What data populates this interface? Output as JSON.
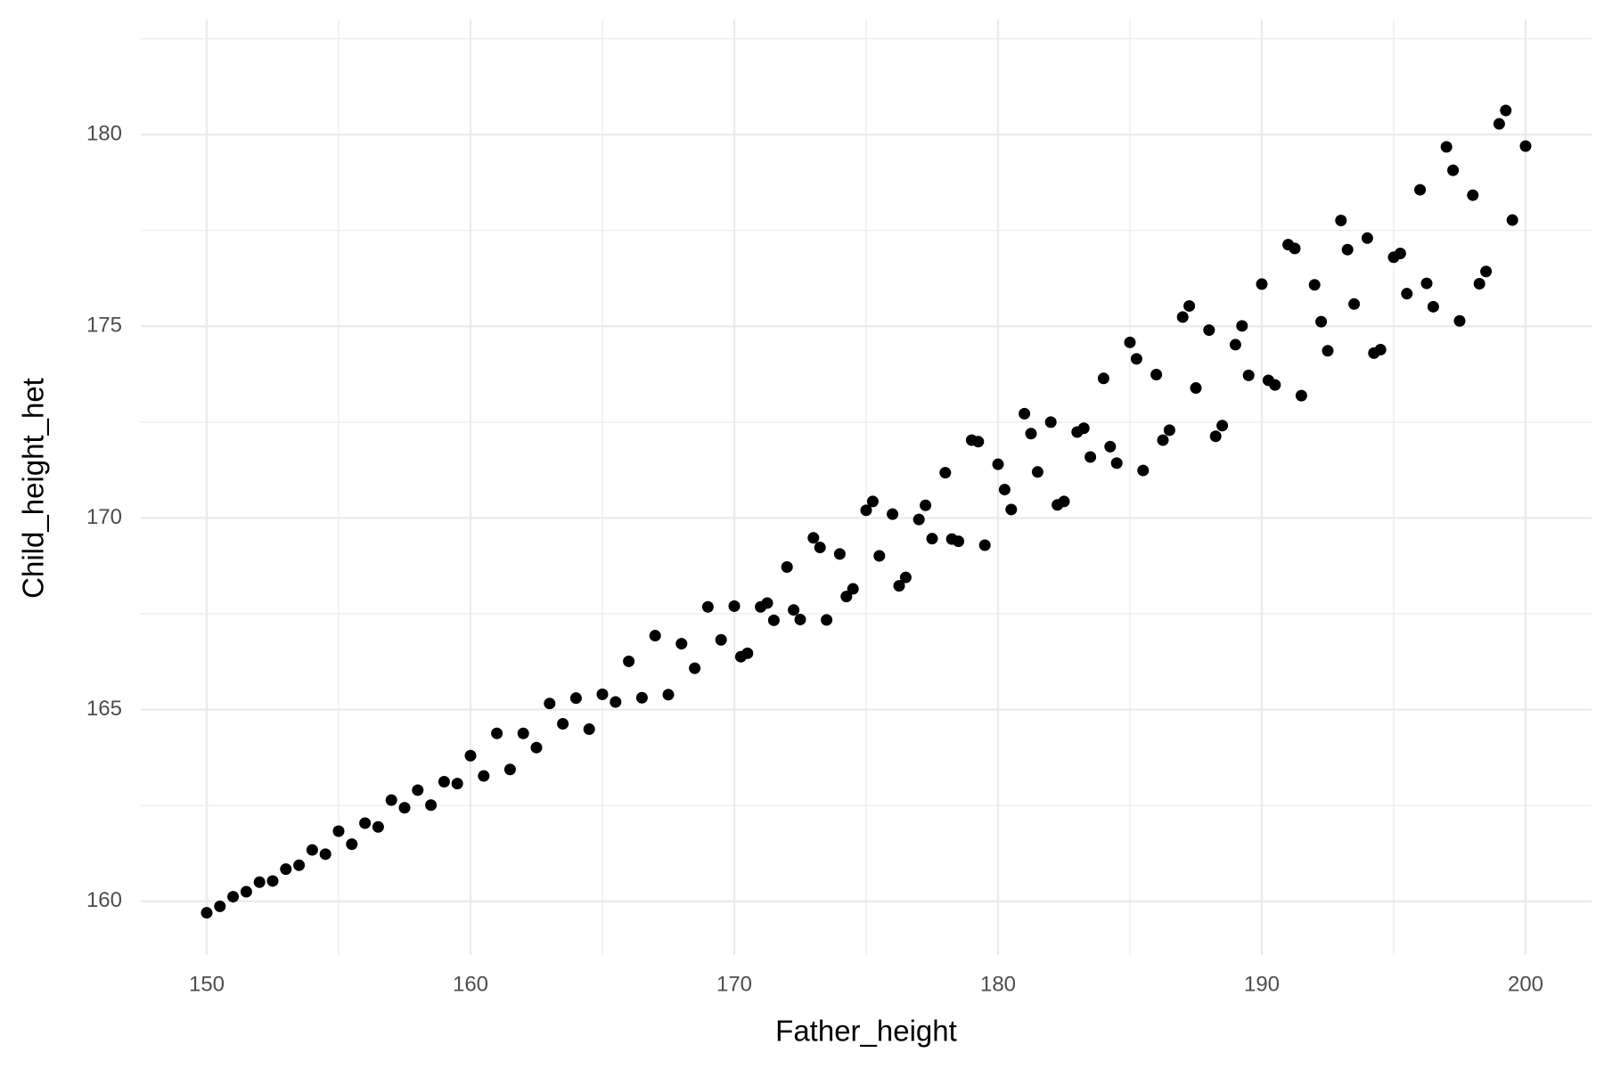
{
  "chart_data": {
    "type": "scatter",
    "x_label": "Father_height",
    "y_label": "Child_height_het",
    "color": "#000000",
    "grid": true,
    "xlim": [
      147.5,
      202.5
    ],
    "ylim": [
      158.6,
      183.0
    ],
    "xticks": [
      150,
      160,
      170,
      180,
      190,
      200
    ],
    "yticks": [
      160,
      165,
      170,
      175,
      180
    ],
    "x": [
      150,
      150.5,
      151,
      151.5,
      152,
      152.5,
      153,
      153.5,
      154,
      154.5,
      155,
      155.5,
      156,
      156.5,
      157,
      157.5,
      158,
      158.5,
      159,
      159.5,
      160,
      160.5,
      161,
      161.5,
      162,
      162.5,
      163,
      163.5,
      164,
      164.5,
      165,
      165.5,
      166,
      166.5,
      167,
      167.5,
      168,
      168.5,
      169,
      169.5,
      170,
      170.5,
      171,
      171.5,
      172,
      172.5,
      173,
      173.5,
      174,
      174.5,
      175,
      175.5,
      176,
      176.5,
      177,
      177.5,
      178,
      178.5,
      179,
      179.5,
      180,
      180.5,
      181,
      181.5,
      182,
      182.5,
      183,
      183.5,
      184,
      184.5,
      185,
      185.5,
      186,
      186.5,
      187,
      187.5,
      188,
      188.5,
      189,
      189.5,
      190,
      190.5,
      191,
      191.5,
      192,
      192.5,
      193,
      193.5,
      194,
      194.5,
      195,
      195.5,
      196,
      196.5,
      197,
      197.5,
      198,
      198.5,
      199,
      199.5,
      200,
      170.25,
      171.25,
      172.25,
      173.25,
      174.25,
      175.25,
      176.25,
      177.25,
      178.25,
      179.25,
      180.25,
      181.25,
      182.25,
      183.25,
      184.25,
      185.25,
      186.25,
      187.25,
      188.25,
      189.25,
      190.25,
      191.25,
      192.25,
      193.25,
      194.25,
      195.25,
      196.25,
      197.25,
      198.25,
      199.25
    ],
    "y": [
      159.7,
      159.87,
      160.12,
      160.25,
      160.5,
      160.53,
      160.84,
      160.94,
      161.34,
      161.23,
      161.83,
      161.49,
      162.04,
      161.94,
      162.64,
      162.44,
      162.9,
      162.51,
      163.12,
      163.07,
      163.8,
      163.27,
      164.38,
      163.44,
      164.38,
      164.01,
      165.16,
      164.63,
      165.3,
      164.49,
      165.4,
      165.2,
      166.26,
      165.31,
      166.93,
      165.39,
      166.72,
      166.08,
      167.68,
      166.82,
      167.7,
      166.47,
      167.68,
      167.33,
      168.72,
      167.35,
      169.48,
      167.34,
      169.06,
      168.15,
      170.2,
      169.01,
      170.1,
      168.45,
      169.96,
      169.46,
      171.18,
      169.39,
      172.03,
      169.29,
      171.4,
      170.22,
      172.72,
      171.2,
      172.5,
      170.43,
      172.24,
      171.59,
      173.64,
      171.43,
      174.58,
      171.24,
      173.74,
      172.29,
      175.24,
      173.39,
      174.9,
      172.41,
      174.52,
      173.72,
      176.1,
      173.47,
      177.13,
      173.19,
      176.08,
      174.36,
      177.76,
      175.58,
      177.3,
      174.39,
      176.8,
      175.85,
      178.56,
      175.51,
      179.68,
      175.14,
      178.42,
      176.43,
      180.28,
      177.77,
      179.7,
      166.38,
      167.78,
      167.6,
      169.23,
      167.95,
      170.43,
      168.23,
      170.33,
      169.45,
      171.99,
      170.74,
      172.2,
      170.34,
      172.34,
      171.86,
      174.15,
      172.03,
      175.53,
      172.13,
      175.01,
      173.59,
      177.03,
      175.12,
      177.0,
      174.3,
      176.9,
      176.12,
      179.07,
      176.11,
      180.63
    ]
  }
}
